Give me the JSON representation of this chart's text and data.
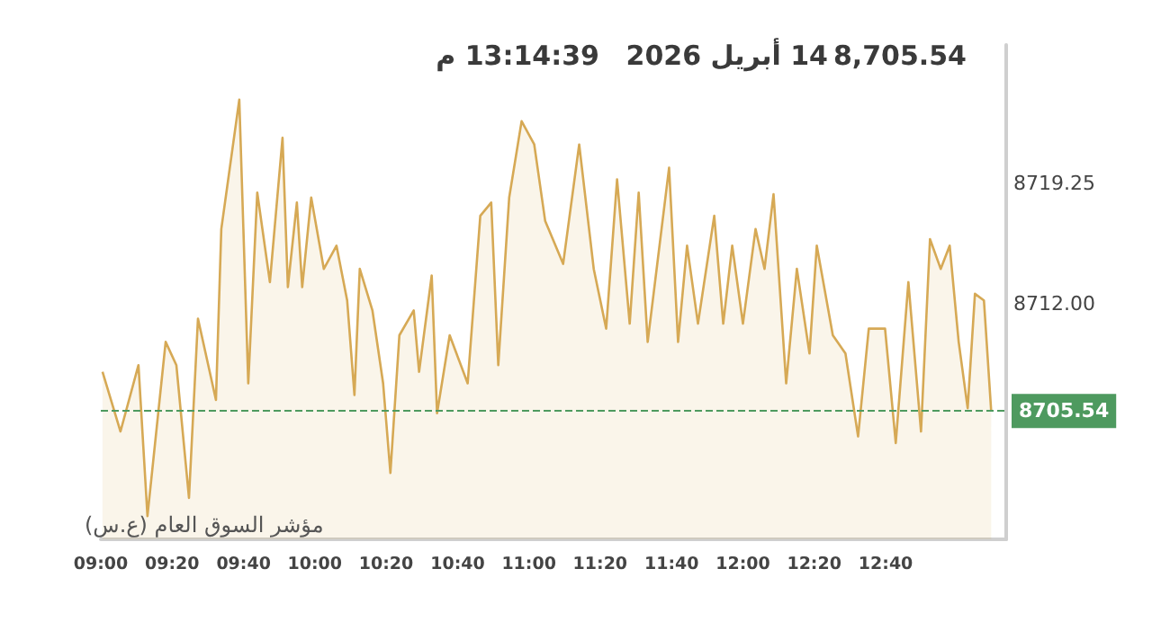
{
  "chart_data": {
    "type": "area",
    "annotations": [
      "8,705.54",
      "14 أبريل 2026",
      "13:14:39 م",
      "مؤشر السوق العام (ع.س)"
    ],
    "x": [
      9.008,
      9.092,
      9.176,
      9.218,
      9.303,
      9.353,
      9.412,
      9.454,
      9.538,
      9.563,
      9.647,
      9.689,
      9.731,
      9.79,
      9.849,
      9.874,
      9.916,
      9.941,
      9.983,
      10.042,
      10.101,
      10.151,
      10.185,
      10.21,
      10.269,
      10.319,
      10.353,
      10.395,
      10.462,
      10.487,
      10.546,
      10.571,
      10.63,
      10.714,
      10.773,
      10.824,
      10.857,
      10.908,
      10.966,
      11.025,
      11.076,
      11.16,
      11.235,
      11.303,
      11.361,
      11.412,
      11.471,
      11.513,
      11.555,
      11.655,
      11.697,
      11.739,
      11.79,
      11.866,
      11.908,
      11.95,
      12.0,
      12.059,
      12.101,
      12.143,
      12.202,
      12.252,
      12.311,
      12.345,
      12.42,
      12.479,
      12.538,
      12.588,
      12.664,
      12.714,
      12.773,
      12.832,
      12.874,
      12.924,
      12.966,
      13.008,
      13.05,
      13.084,
      13.126,
      13.16
    ],
    "series": [
      {
        "color": "#d6a955",
        "values": [
          8707.9,
          8704.3,
          8708.3,
          8699.2,
          8709.7,
          8708.3,
          8700.3,
          8711.1,
          8706.2,
          8716.5,
          8724.3,
          8707.2,
          8718.7,
          8713.3,
          8722.0,
          8713.0,
          8718.1,
          8713.0,
          8718.4,
          8714.1,
          8715.5,
          8712.2,
          8706.5,
          8714.1,
          8711.6,
          8707.2,
          8701.8,
          8710.1,
          8711.6,
          8707.9,
          8713.7,
          8705.4,
          8710.1,
          8707.2,
          8717.3,
          8718.1,
          8708.3,
          8718.4,
          8723.0,
          8721.6,
          8717.0,
          8714.4,
          8721.6,
          8714.1,
          8710.5,
          8719.5,
          8710.8,
          8718.7,
          8709.7,
          8720.2,
          8709.7,
          8715.5,
          8710.8,
          8717.3,
          8710.8,
          8715.5,
          8710.8,
          8716.5,
          8714.1,
          8718.6,
          8707.2,
          8714.1,
          8709.0,
          8715.5,
          8710.1,
          8709.0,
          8704.0,
          8710.5,
          8710.5,
          8703.6,
          8713.3,
          8704.3,
          8715.9,
          8714.1,
          8715.5,
          8709.7,
          8705.7,
          8712.6,
          8712.2,
          8705.5
        ]
      }
    ],
    "xlim": [
      9,
      13.23
    ],
    "xticks": [
      {
        "value": 9,
        "label": "09:00"
      },
      {
        "value": 9.333,
        "label": "09:20"
      },
      {
        "value": 9.667,
        "label": "09:40"
      },
      {
        "value": 10,
        "label": "10:00"
      },
      {
        "value": 10.333,
        "label": "10:20"
      },
      {
        "value": 10.667,
        "label": "10:40"
      },
      {
        "value": 11,
        "label": "11:00"
      },
      {
        "value": 11.333,
        "label": "11:20"
      },
      {
        "value": 11.667,
        "label": "11:40"
      },
      {
        "value": 12,
        "label": "12:00"
      },
      {
        "value": 12.333,
        "label": "12:20"
      },
      {
        "value": 12.667,
        "label": "12:40"
      }
    ],
    "ylim": [
      8697.8,
      8727.6
    ],
    "yticks": [
      8719.25,
      {
        "value": 8712,
        "label": "8712.00"
      }
    ],
    "ref_lines": [
      {
        "axis": "y",
        "value": 8705.54,
        "label": "8705.54",
        "color": "#4e9a5f",
        "line_style": "dashed"
      }
    ],
    "grid": false,
    "marker": "none",
    "line_style": "solid"
  }
}
